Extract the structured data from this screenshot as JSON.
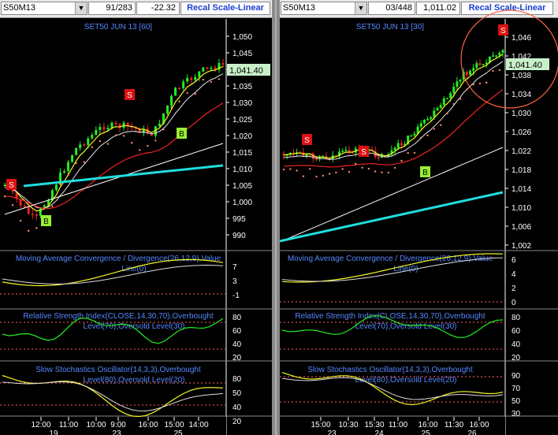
{
  "window": {
    "title": "SET50 futures dual chart"
  },
  "left": {
    "symbol": "S50M13",
    "count": "91/283",
    "change": "-22.32",
    "recal": "Recal Scale-Linear",
    "title": "SET50 JUN 13   [60]",
    "price_label": "1,041.40",
    "price_ticks": [
      "1,050",
      "1,045",
      "1,040",
      "1,035",
      "1,030",
      "1,025",
      "1,020",
      "1,015",
      "1,010",
      "1,005",
      "1,000",
      "995",
      "990"
    ],
    "macd_title": "Moving Average Convergence / Divergence(26,12,9),Value",
    "macd_title2": "Line(0)",
    "macd_ticks": [
      "7",
      "3",
      "-1"
    ],
    "rsi_title": "Relative Strength Index(CLOSE,14,30,70),Overbought",
    "rsi_title2": "Level(70),Oversold Level(30)",
    "rsi_ticks": [
      "80",
      "60",
      "40",
      "20"
    ],
    "sto_title": "Slow Stochastics Oscillator(14,3,3),Overbought",
    "sto_title2": "Level(80),Oversold Level(20)",
    "sto_ticks": [
      "80",
      "50",
      "40",
      "20"
    ],
    "time_ticks": [
      "12:00",
      "11:00",
      "10:00",
      "9:00",
      "16:00",
      "15:00",
      "14:00"
    ],
    "date_ticks": [
      "19",
      "23",
      "25"
    ],
    "signals": [
      "S",
      "S",
      "B",
      "B"
    ]
  },
  "right": {
    "symbol": "S50M13",
    "count": "03/448",
    "change": "1,011.02",
    "recal": "Recal Scale-Linear",
    "title": "SET50 JUN 13   [30]",
    "price_label": "1,041.40",
    "price_ticks": [
      "1,046",
      "1,042",
      "1,038",
      "1,034",
      "1,030",
      "1,026",
      "1,022",
      "1,018",
      "1,014",
      "1,010",
      "1,006",
      "1,002"
    ],
    "macd_title": "Moving Average Convergence / Divergence(26,12,9),Value",
    "macd_title2": "Line(0)",
    "macd_ticks": [
      "6",
      "4",
      "2",
      "0"
    ],
    "rsi_title": "Relative Strength Index(CLOSE,14,30,70),Overbought",
    "rsi_title2": "Level(70),Oversold Level(30)",
    "rsi_ticks": [
      "80",
      "60",
      "40",
      "20"
    ],
    "sto_title": "Slow Stochastics Oscillator(14,3,3),Overbought",
    "sto_title2": "Level(80),Oversold Level(20)",
    "sto_ticks": [
      "90",
      "70",
      "50",
      "30"
    ],
    "time_ticks": [
      "15:00",
      "10:30",
      "15:30",
      "11:00",
      "16:00",
      "11:30",
      "16:00"
    ],
    "date_ticks": [
      "23",
      "24",
      "25",
      "26"
    ],
    "signals": [
      "S",
      "S",
      "B",
      "S"
    ]
  },
  "colors": {
    "bull": "#22ee22",
    "bear": "#ee2222",
    "ema_fast": "#f6f622",
    "ema_mid": "#e8e8e8",
    "ema_slow": "#ee2222",
    "long_ma": "#ffffff",
    "sma_cyan": "#22dddd",
    "sar": "#ff8866",
    "axis_text": "#ffffff",
    "title_blue": "#5588ff",
    "price_tag": "#c8f0c8"
  }
}
